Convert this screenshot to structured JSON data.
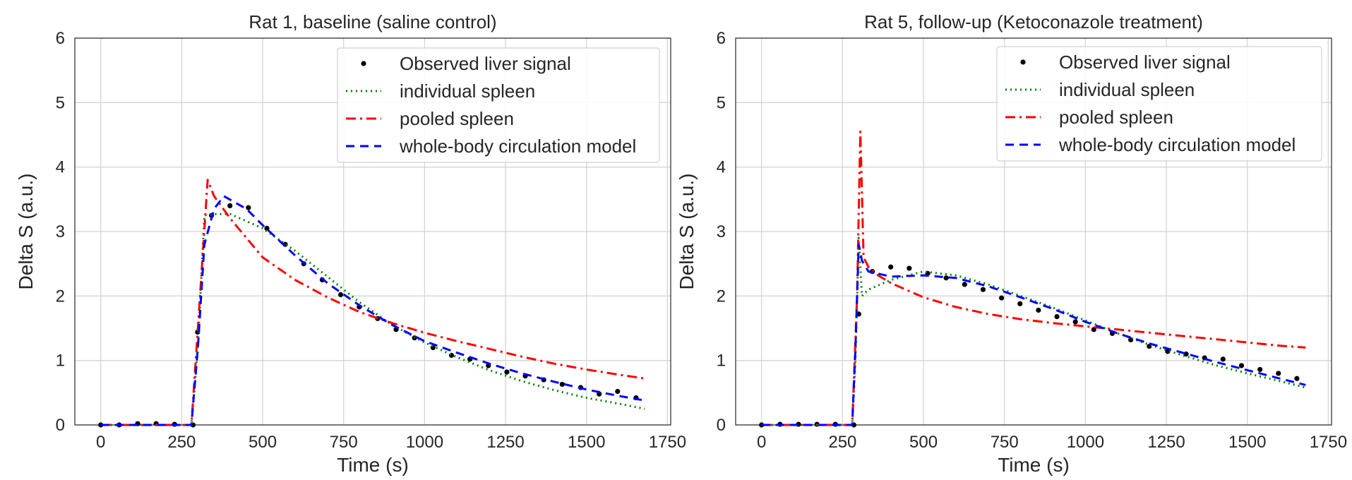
{
  "chart_data": [
    {
      "type": "line",
      "title": "Rat 1, baseline (saline control)",
      "xlabel": "Time (s)",
      "ylabel": "Delta S (a.u.)",
      "xlim": [
        -80,
        1760
      ],
      "ylim": [
        0,
        6
      ],
      "xticks": [
        0,
        250,
        500,
        750,
        1000,
        1250,
        1500,
        1750
      ],
      "yticks": [
        0,
        1,
        2,
        3,
        4,
        5,
        6
      ],
      "grid": true,
      "legend_position": "top-right",
      "legend": [
        "Observed liver signal",
        "individual spleen",
        "pooled spleen",
        "whole-body circulation model"
      ],
      "series": [
        {
          "name": "Observed liver signal",
          "style": "dots",
          "color": "#000000",
          "x": [
            0,
            57,
            114,
            171,
            228,
            285,
            299,
            342,
            399,
            456,
            513,
            570,
            627,
            684,
            741,
            798,
            855,
            912,
            969,
            1026,
            1083,
            1140,
            1197,
            1254,
            1311,
            1368,
            1425,
            1482,
            1539,
            1596,
            1653
          ],
          "y": [
            0.0,
            0.0,
            0.02,
            0.02,
            0.01,
            0.0,
            1.44,
            3.25,
            3.4,
            3.37,
            3.05,
            2.8,
            2.5,
            2.25,
            2.02,
            1.83,
            1.65,
            1.48,
            1.35,
            1.2,
            1.08,
            1.02,
            0.92,
            0.82,
            0.76,
            0.7,
            0.63,
            0.58,
            0.48,
            0.52,
            0.42
          ]
        },
        {
          "name": "individual spleen",
          "style": "dotted",
          "color": "#008000",
          "x": [
            0,
            280,
            300,
            320,
            350,
            400,
            500,
            600,
            700,
            800,
            900,
            1000,
            1100,
            1200,
            1300,
            1400,
            1500,
            1600,
            1680
          ],
          "y": [
            0,
            0,
            1.2,
            3.25,
            3.27,
            3.27,
            3.05,
            2.7,
            2.3,
            1.9,
            1.55,
            1.28,
            1.05,
            0.85,
            0.68,
            0.54,
            0.42,
            0.33,
            0.25
          ]
        },
        {
          "name": "pooled spleen",
          "style": "dashdot",
          "color": "#ff0000",
          "x": [
            0,
            280,
            300,
            330,
            350,
            400,
            500,
            600,
            700,
            800,
            900,
            1000,
            1100,
            1200,
            1300,
            1400,
            1500,
            1600,
            1680
          ],
          "y": [
            0,
            0,
            1.5,
            3.8,
            3.55,
            3.2,
            2.6,
            2.25,
            1.98,
            1.75,
            1.58,
            1.43,
            1.3,
            1.18,
            1.06,
            0.95,
            0.86,
            0.78,
            0.72
          ]
        },
        {
          "name": "whole-body circulation model",
          "style": "dashed",
          "color": "#0000ff",
          "x": [
            0,
            280,
            300,
            320,
            350,
            380,
            450,
            500,
            600,
            700,
            800,
            900,
            1000,
            1100,
            1200,
            1300,
            1400,
            1500,
            1600,
            1680
          ],
          "y": [
            0,
            0,
            1.2,
            2.8,
            3.35,
            3.55,
            3.35,
            3.1,
            2.63,
            2.2,
            1.85,
            1.55,
            1.3,
            1.12,
            0.95,
            0.8,
            0.67,
            0.55,
            0.45,
            0.38
          ]
        }
      ]
    },
    {
      "type": "line",
      "title": "Rat 5, follow-up (Ketoconazole treatment)",
      "xlabel": "Time (s)",
      "ylabel": "Delta S (a.u.)",
      "xlim": [
        -80,
        1760
      ],
      "ylim": [
        0,
        6
      ],
      "xticks": [
        0,
        250,
        500,
        750,
        1000,
        1250,
        1500,
        1750
      ],
      "yticks": [
        0,
        1,
        2,
        3,
        4,
        5,
        6
      ],
      "grid": true,
      "legend_position": "top-right",
      "legend": [
        "Observed liver signal",
        "individual spleen",
        "pooled spleen",
        "whole-body circulation model"
      ],
      "series": [
        {
          "name": "Observed liver signal",
          "style": "dots",
          "color": "#000000",
          "x": [
            0,
            57,
            114,
            171,
            228,
            285,
            300,
            342,
            399,
            456,
            513,
            570,
            627,
            684,
            741,
            798,
            855,
            912,
            969,
            1026,
            1083,
            1140,
            1197,
            1254,
            1311,
            1368,
            1425,
            1482,
            1539,
            1596,
            1653
          ],
          "y": [
            0.0,
            0.01,
            0.01,
            0.01,
            0.01,
            0.0,
            1.72,
            2.38,
            2.45,
            2.43,
            2.35,
            2.28,
            2.18,
            2.1,
            1.97,
            1.88,
            1.78,
            1.68,
            1.6,
            1.48,
            1.42,
            1.32,
            1.22,
            1.14,
            1.1,
            1.04,
            1.02,
            0.92,
            0.86,
            0.8,
            0.72
          ]
        },
        {
          "name": "individual spleen",
          "style": "dotted",
          "color": "#008000",
          "x": [
            0,
            280,
            290,
            300,
            310,
            330,
            400,
            500,
            600,
            700,
            800,
            900,
            1000,
            1100,
            1200,
            1300,
            1400,
            1500,
            1600,
            1680
          ],
          "y": [
            0,
            0,
            1.0,
            2.9,
            2.0,
            2.1,
            2.25,
            2.38,
            2.32,
            2.18,
            2.0,
            1.82,
            1.62,
            1.42,
            1.24,
            1.08,
            0.93,
            0.8,
            0.68,
            0.58
          ]
        },
        {
          "name": "pooled spleen",
          "style": "dashdot",
          "color": "#ff0000",
          "x": [
            0,
            280,
            295,
            305,
            315,
            330,
            350,
            400,
            500,
            600,
            700,
            800,
            900,
            1000,
            1100,
            1200,
            1300,
            1400,
            1500,
            1600,
            1680
          ],
          "y": [
            0,
            0,
            2.0,
            4.55,
            2.6,
            2.45,
            2.35,
            2.2,
            1.98,
            1.83,
            1.72,
            1.64,
            1.58,
            1.53,
            1.48,
            1.43,
            1.38,
            1.33,
            1.28,
            1.23,
            1.2
          ]
        },
        {
          "name": "whole-body circulation model",
          "style": "dashed",
          "color": "#0000ff",
          "x": [
            0,
            280,
            290,
            300,
            310,
            330,
            400,
            500,
            600,
            700,
            800,
            900,
            1000,
            1100,
            1200,
            1300,
            1400,
            1500,
            1600,
            1680
          ],
          "y": [
            0,
            0,
            1.2,
            2.8,
            2.55,
            2.38,
            2.3,
            2.32,
            2.28,
            2.15,
            1.98,
            1.8,
            1.6,
            1.42,
            1.26,
            1.12,
            0.98,
            0.85,
            0.72,
            0.62
          ]
        }
      ]
    }
  ]
}
